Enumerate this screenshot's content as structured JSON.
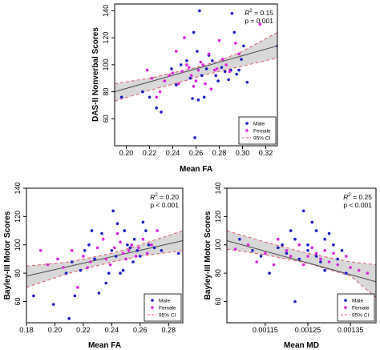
{
  "legend_labels": {
    "male": "Male",
    "female": "Female",
    "ci": "95% CI"
  },
  "colors": {
    "male": "#1a1acc",
    "female": "#e020e0",
    "ci": "#e05a6a",
    "band": "#d8d8d8",
    "fit": "#4a4a4a",
    "axis": "#000000"
  },
  "chart_data": [
    {
      "type": "scatter",
      "xlabel": "Mean FA",
      "ylabel": "DAS-II Nonverbal Scores",
      "xlim": [
        0.19,
        0.33
      ],
      "ylim": [
        40,
        145
      ],
      "xticks": [
        0.2,
        0.22,
        0.24,
        0.26,
        0.28,
        0.3,
        0.32
      ],
      "xtick_labels": [
        "0.20",
        "0.22",
        "0.24",
        "0.26",
        "0.28",
        "0.30",
        "0.32"
      ],
      "yticks": [
        60,
        80,
        100,
        120,
        140
      ],
      "ytick_labels": [
        "60",
        "80",
        "100",
        "120",
        "140"
      ],
      "stat_lines": [
        "R",
        "2",
        " = 0.15",
        "p = 0.001"
      ],
      "legend_position": "bottom-right",
      "fit": {
        "x0": 0.19,
        "y0": 80,
        "x1": 0.33,
        "y1": 114
      },
      "ci_upper": [
        [
          0.19,
          86
        ],
        [
          0.22,
          90
        ],
        [
          0.25,
          96
        ],
        [
          0.265,
          99
        ],
        [
          0.28,
          103
        ],
        [
          0.3,
          110
        ],
        [
          0.33,
          124
        ]
      ],
      "ci_lower": [
        [
          0.19,
          73
        ],
        [
          0.22,
          81
        ],
        [
          0.25,
          88
        ],
        [
          0.265,
          92
        ],
        [
          0.28,
          95
        ],
        [
          0.3,
          99
        ],
        [
          0.33,
          105
        ]
      ],
      "series": [
        {
          "name": "Male",
          "points": [
            [
              0.196,
              76
            ],
            [
              0.214,
              80
            ],
            [
              0.22,
              76
            ],
            [
              0.226,
              68
            ],
            [
              0.23,
              65
            ],
            [
              0.239,
              97
            ],
            [
              0.243,
              85
            ],
            [
              0.247,
              100
            ],
            [
              0.252,
              103
            ],
            [
              0.255,
              90
            ],
            [
              0.257,
              75
            ],
            [
              0.258,
              124
            ],
            [
              0.259,
              46
            ],
            [
              0.261,
              110
            ],
            [
              0.262,
              74
            ],
            [
              0.263,
              140
            ],
            [
              0.265,
              92
            ],
            [
              0.267,
              76
            ],
            [
              0.269,
              97
            ],
            [
              0.271,
              107
            ],
            [
              0.274,
              103
            ],
            [
              0.277,
              92
            ],
            [
              0.279,
              88
            ],
            [
              0.282,
              98
            ],
            [
              0.285,
              95
            ],
            [
              0.288,
              89
            ],
            [
              0.29,
              96
            ],
            [
              0.291,
              138
            ],
            [
              0.293,
              124
            ],
            [
              0.295,
              93
            ],
            [
              0.297,
              96
            ],
            [
              0.299,
              104
            ],
            [
              0.301,
              114
            ],
            [
              0.304,
              87
            ],
            [
              0.33,
              114
            ]
          ]
        },
        {
          "name": "Female",
          "points": [
            [
              0.218,
              96
            ],
            [
              0.222,
              90
            ],
            [
              0.226,
              76
            ],
            [
              0.229,
              80
            ],
            [
              0.233,
              88
            ],
            [
              0.237,
              92
            ],
            [
              0.24,
              94
            ],
            [
              0.243,
              110
            ],
            [
              0.245,
              86
            ],
            [
              0.248,
              95
            ],
            [
              0.25,
              120
            ],
            [
              0.252,
              100
            ],
            [
              0.254,
              98
            ],
            [
              0.256,
              92
            ],
            [
              0.258,
              84
            ],
            [
              0.26,
              88
            ],
            [
              0.262,
              96
            ],
            [
              0.264,
              102
            ],
            [
              0.266,
              100
            ],
            [
              0.268,
              86
            ],
            [
              0.271,
              108
            ],
            [
              0.273,
              82
            ],
            [
              0.276,
              96
            ],
            [
              0.278,
              97
            ],
            [
              0.28,
              118
            ],
            [
              0.283,
              104
            ],
            [
              0.286,
              100
            ],
            [
              0.289,
              95
            ],
            [
              0.294,
              116
            ],
            [
              0.297,
              108
            ],
            [
              0.315,
              130
            ]
          ]
        }
      ]
    },
    {
      "type": "scatter",
      "xlabel": "Mean FA",
      "ylabel": "Bayley-III Motor Scores",
      "xlim": [
        0.18,
        0.29
      ],
      "ylim": [
        45,
        140
      ],
      "xticks": [
        0.18,
        0.2,
        0.22,
        0.24,
        0.26,
        0.28
      ],
      "xtick_labels": [
        "0.18",
        "0.20",
        "0.22",
        "0.24",
        "0.26",
        "0.28"
      ],
      "yticks": [
        60,
        80,
        100,
        120,
        140
      ],
      "ytick_labels": [
        "60",
        "80",
        "100",
        "120",
        "140"
      ],
      "stat_lines": [
        "R",
        "2",
        " = 0.20",
        "p < 0.001"
      ],
      "legend_position": "bottom-right",
      "fit": {
        "x0": 0.18,
        "y0": 78,
        "x1": 0.29,
        "y1": 103
      },
      "ci_upper": [
        [
          0.18,
          85
        ],
        [
          0.21,
          88
        ],
        [
          0.24,
          94
        ],
        [
          0.26,
          100
        ],
        [
          0.29,
          110
        ]
      ],
      "ci_lower": [
        [
          0.18,
          70
        ],
        [
          0.21,
          80
        ],
        [
          0.24,
          88
        ],
        [
          0.26,
          92
        ],
        [
          0.29,
          96
        ]
      ],
      "series": [
        {
          "name": "Male",
          "points": [
            [
              0.185,
              64
            ],
            [
              0.199,
              58
            ],
            [
              0.208,
              80
            ],
            [
              0.21,
              48
            ],
            [
              0.212,
              88
            ],
            [
              0.214,
              64
            ],
            [
              0.218,
              82
            ],
            [
              0.221,
              96
            ],
            [
              0.224,
              100
            ],
            [
              0.226,
              110
            ],
            [
              0.228,
              90
            ],
            [
              0.231,
              66
            ],
            [
              0.233,
              108
            ],
            [
              0.236,
              73
            ],
            [
              0.238,
              80
            ],
            [
              0.24,
              96
            ],
            [
              0.241,
              124
            ],
            [
              0.243,
              92
            ],
            [
              0.244,
              115
            ],
            [
              0.246,
              80
            ],
            [
              0.248,
              82
            ],
            [
              0.249,
              110
            ],
            [
              0.251,
              100
            ],
            [
              0.253,
              98
            ],
            [
              0.255,
              88
            ],
            [
              0.256,
              104
            ],
            [
              0.258,
              96
            ],
            [
              0.26,
              92
            ],
            [
              0.262,
              116
            ],
            [
              0.264,
              110
            ],
            [
              0.266,
              100
            ],
            [
              0.27,
              98
            ],
            [
              0.275,
              96
            ],
            [
              0.287,
              94
            ]
          ]
        },
        {
          "name": "Female",
          "points": [
            [
              0.19,
              96
            ],
            [
              0.195,
              86
            ],
            [
              0.202,
              90
            ],
            [
              0.206,
              84
            ],
            [
              0.212,
              96
            ],
            [
              0.216,
              70
            ],
            [
              0.22,
              92
            ],
            [
              0.223,
              84
            ],
            [
              0.225,
              88
            ],
            [
              0.23,
              98
            ],
            [
              0.234,
              104
            ],
            [
              0.236,
              90
            ],
            [
              0.239,
              86
            ],
            [
              0.242,
              98
            ],
            [
              0.244,
              108
            ],
            [
              0.246,
              102
            ],
            [
              0.248,
              94
            ],
            [
              0.25,
              90
            ],
            [
              0.252,
              96
            ],
            [
              0.254,
              100
            ],
            [
              0.257,
              92
            ],
            [
              0.259,
              98
            ],
            [
              0.262,
              104
            ],
            [
              0.265,
              94
            ],
            [
              0.268,
              100
            ],
            [
              0.272,
              110
            ]
          ]
        }
      ]
    },
    {
      "type": "scatter",
      "xlabel": "Mean MD",
      "ylabel": "Bayley-III Motor Scores",
      "xlim": [
        0.00106,
        0.00141
      ],
      "ylim": [
        45,
        140
      ],
      "xticks": [
        0.00115,
        0.00125,
        0.00135
      ],
      "xtick_labels": [
        "0.00115",
        "0.00125",
        "0.00135"
      ],
      "yticks": [
        60,
        80,
        100,
        120,
        140
      ],
      "ytick_labels": [
        "60",
        "80",
        "100",
        "120",
        "140"
      ],
      "stat_lines": [
        "R",
        "2",
        " = 0.25",
        "p < 0.001"
      ],
      "legend_position": "bottom-right",
      "fit": {
        "x0": 0.00106,
        "y0": 103,
        "x1": 0.00141,
        "y1": 74
      },
      "ci_upper": [
        [
          0.00106,
          110
        ],
        [
          0.00115,
          102
        ],
        [
          0.00125,
          94
        ],
        [
          0.00135,
          88
        ],
        [
          0.00141,
          86
        ]
      ],
      "ci_lower": [
        [
          0.00106,
          97
        ],
        [
          0.00115,
          93
        ],
        [
          0.00125,
          87
        ],
        [
          0.00135,
          78
        ],
        [
          0.00141,
          63
        ]
      ],
      "series": [
        {
          "name": "Male",
          "points": [
            [
              0.00109,
              104
            ],
            [
              0.00112,
              96
            ],
            [
              0.00114,
              92
            ],
            [
              0.00116,
              80
            ],
            [
              0.00118,
              98
            ],
            [
              0.00119,
              100
            ],
            [
              0.0012,
              94
            ],
            [
              0.00121,
              110
            ],
            [
              0.00122,
              104
            ],
            [
              0.00122,
              60
            ],
            [
              0.00123,
              90
            ],
            [
              0.00124,
              124
            ],
            [
              0.00125,
              96
            ],
            [
              0.00125,
              100
            ],
            [
              0.00126,
              116
            ],
            [
              0.00127,
              92
            ],
            [
              0.00127,
              110
            ],
            [
              0.00128,
              88
            ],
            [
              0.00129,
              104
            ],
            [
              0.00129,
              82
            ],
            [
              0.0013,
              108
            ],
            [
              0.00131,
              100
            ],
            [
              0.00132,
              90
            ],
            [
              0.00133,
              96
            ],
            [
              0.00134,
              80
            ],
            [
              0.00136,
              48
            ],
            [
              0.00137,
              58
            ],
            [
              0.0014,
              64
            ]
          ]
        },
        {
          "name": "Female",
          "points": [
            [
              0.00108,
              97
            ],
            [
              0.00111,
              100
            ],
            [
              0.00113,
              88
            ],
            [
              0.00115,
              94
            ],
            [
              0.00117,
              86
            ],
            [
              0.00118,
              104
            ],
            [
              0.0012,
              96
            ],
            [
              0.00121,
              92
            ],
            [
              0.00123,
              100
            ],
            [
              0.00124,
              86
            ],
            [
              0.00125,
              92
            ],
            [
              0.00126,
              98
            ],
            [
              0.00127,
              94
            ],
            [
              0.00128,
              90
            ],
            [
              0.00129,
              96
            ],
            [
              0.0013,
              88
            ],
            [
              0.00131,
              94
            ],
            [
              0.00132,
              86
            ],
            [
              0.00134,
              92
            ],
            [
              0.00135,
              84
            ],
            [
              0.00137,
              82
            ],
            [
              0.00139,
              80
            ]
          ]
        }
      ]
    }
  ]
}
